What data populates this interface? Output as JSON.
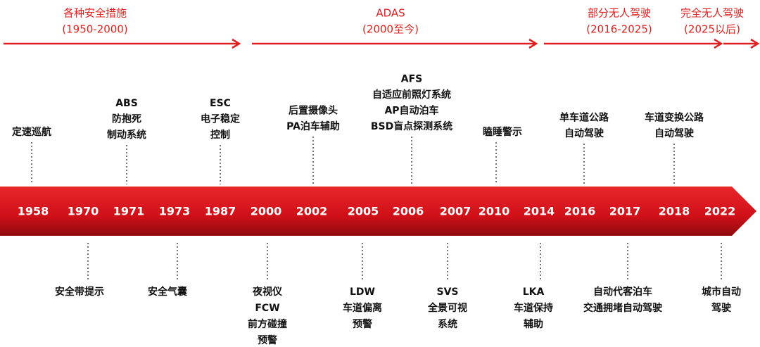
{
  "periods": [
    {
      "title": "各种安全措施",
      "range": "(1950-2000)"
    },
    {
      "title": "ADAS",
      "range": "(2000至今)"
    },
    {
      "title": "部分无人驾驶",
      "range": "(2016-2025)"
    },
    {
      "title": "完全无人驾驶",
      "range": "(2025以后)"
    }
  ],
  "years": [
    "1958",
    "1970",
    "1971",
    "1973",
    "1987",
    "2000",
    "2002",
    "2005",
    "2006",
    "2007",
    "2010",
    "2014",
    "2016",
    "2017",
    "2018",
    "2022"
  ],
  "events_above": [
    {
      "lines": [
        "定速巡航"
      ]
    },
    {
      "lines": [
        "ABS",
        "防抱死",
        "制动系统"
      ]
    },
    {
      "lines": [
        "ESC",
        "电子稳定",
        "控制"
      ]
    },
    {
      "lines": [
        "后置摄像头",
        "PA泊车辅助"
      ]
    },
    {
      "lines": [
        "AFS",
        "自适应前照灯系统",
        "AP自动泊车",
        "BSD盲点探测系统"
      ]
    },
    {
      "lines": [
        "瞌睡警示"
      ]
    },
    {
      "lines": [
        "单车道公路",
        "自动驾驶"
      ]
    },
    {
      "lines": [
        "车道变换公路",
        "自动驾驶"
      ]
    }
  ],
  "events_below": [
    {
      "lines": [
        "安全带提示"
      ]
    },
    {
      "lines": [
        "安全气囊"
      ]
    },
    {
      "lines": [
        "夜视仪",
        "FCW",
        "前方碰撞",
        "预警"
      ]
    },
    {
      "lines": [
        "LDW",
        "车道偏离",
        "预警"
      ]
    },
    {
      "lines": [
        "SVS",
        "全景可视",
        "系统"
      ]
    },
    {
      "lines": [
        "LKA",
        "车道保持",
        "辅助"
      ]
    },
    {
      "lines": [
        "自动代客泊车",
        "交通拥堵自动驾驶"
      ]
    },
    {
      "lines": [
        "城市自动",
        "驾驶"
      ]
    }
  ]
}
